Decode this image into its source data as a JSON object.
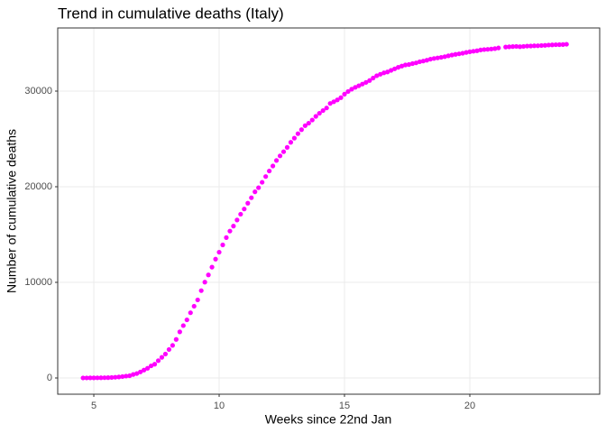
{
  "chart_data": {
    "type": "scatter",
    "title": "Trend in cumulative deaths (Italy)",
    "x_label": "Weeks since 22nd Jan",
    "y_label": "Number of cumulative deaths",
    "xlim": [
      3.56,
      25.18
    ],
    "ylim": [
      -1698,
      36604
    ],
    "xticks": [
      5,
      10,
      15,
      20
    ],
    "yticks": [
      0,
      10000,
      20000,
      30000
    ],
    "grid": true,
    "color": "#ff00ff",
    "x": [
      4.571,
      4.714,
      4.857,
      5,
      5.143,
      5.286,
      5.429,
      5.571,
      5.714,
      5.857,
      6,
      6.143,
      6.286,
      6.429,
      6.571,
      6.714,
      6.857,
      7,
      7.143,
      7.286,
      7.429,
      7.571,
      7.714,
      7.857,
      8,
      8.143,
      8.286,
      8.429,
      8.571,
      8.714,
      8.857,
      9,
      9.143,
      9.286,
      9.429,
      9.571,
      9.714,
      9.857,
      10,
      10.143,
      10.286,
      10.429,
      10.571,
      10.714,
      10.857,
      11,
      11.143,
      11.286,
      11.429,
      11.571,
      11.714,
      11.857,
      12,
      12.143,
      12.286,
      12.429,
      12.571,
      12.714,
      12.857,
      13,
      13.143,
      13.286,
      13.429,
      13.571,
      13.714,
      13.857,
      14,
      14.143,
      14.286,
      14.429,
      14.571,
      14.714,
      14.857,
      15,
      15.143,
      15.286,
      15.429,
      15.571,
      15.714,
      15.857,
      16,
      16.143,
      16.286,
      16.429,
      16.571,
      16.714,
      16.857,
      17,
      17.143,
      17.286,
      17.429,
      17.571,
      17.714,
      17.857,
      18,
      18.143,
      18.286,
      18.429,
      18.571,
      18.714,
      18.857,
      19,
      19.143,
      19.286,
      19.429,
      19.571,
      19.714,
      19.857,
      20,
      20.143,
      20.286,
      20.429,
      20.571,
      20.714,
      20.857,
      21,
      21.143,
      21.429,
      21.571,
      21.714,
      21.857,
      22,
      22.143,
      22.286,
      22.429,
      22.571,
      22.714,
      22.857,
      23,
      23.143,
      23.286,
      23.429,
      23.571,
      23.714,
      23.857
    ],
    "values": [
      3,
      7,
      10,
      12,
      17,
      21,
      29,
      34,
      52,
      79,
      107,
      148,
      197,
      233,
      366,
      463,
      631,
      827,
      1016,
      1266,
      1441,
      1809,
      2158,
      2503,
      2978,
      3405,
      4032,
      4825,
      5476,
      6077,
      6820,
      7503,
      8165,
      9134,
      10023,
      10779,
      11591,
      12428,
      13155,
      13915,
      14681,
      15362,
      15887,
      16523,
      17127,
      17669,
      18279,
      18849,
      19468,
      19899,
      20465,
      21067,
      21645,
      22170,
      22745,
      23227,
      23660,
      24114,
      24648,
      25085,
      25549,
      25969,
      26384,
      26644,
      26977,
      27359,
      27682,
      27967,
      28236,
      28710,
      28884,
      29079,
      29315,
      29684,
      29958,
      30201,
      30395,
      30560,
      30739,
      30911,
      31106,
      31368,
      31610,
      31763,
      31908,
      32007,
      32169,
      32330,
      32486,
      32616,
      32735,
      32785,
      32877,
      32955,
      33072,
      33142,
      33229,
      33340,
      33415,
      33475,
      33530,
      33601,
      33689,
      33774,
      33846,
      33899,
      33964,
      34043,
      34114,
      34167,
      34223,
      34301,
      34345,
      34371,
      34405,
      34448,
      34514,
      34610,
      34634,
      34657,
      34675,
      34644,
      34678,
      34708,
      34716,
      34738,
      34744,
      34767,
      34788,
      34818,
      34833,
      34854,
      34861,
      34869,
      34899
    ]
  }
}
